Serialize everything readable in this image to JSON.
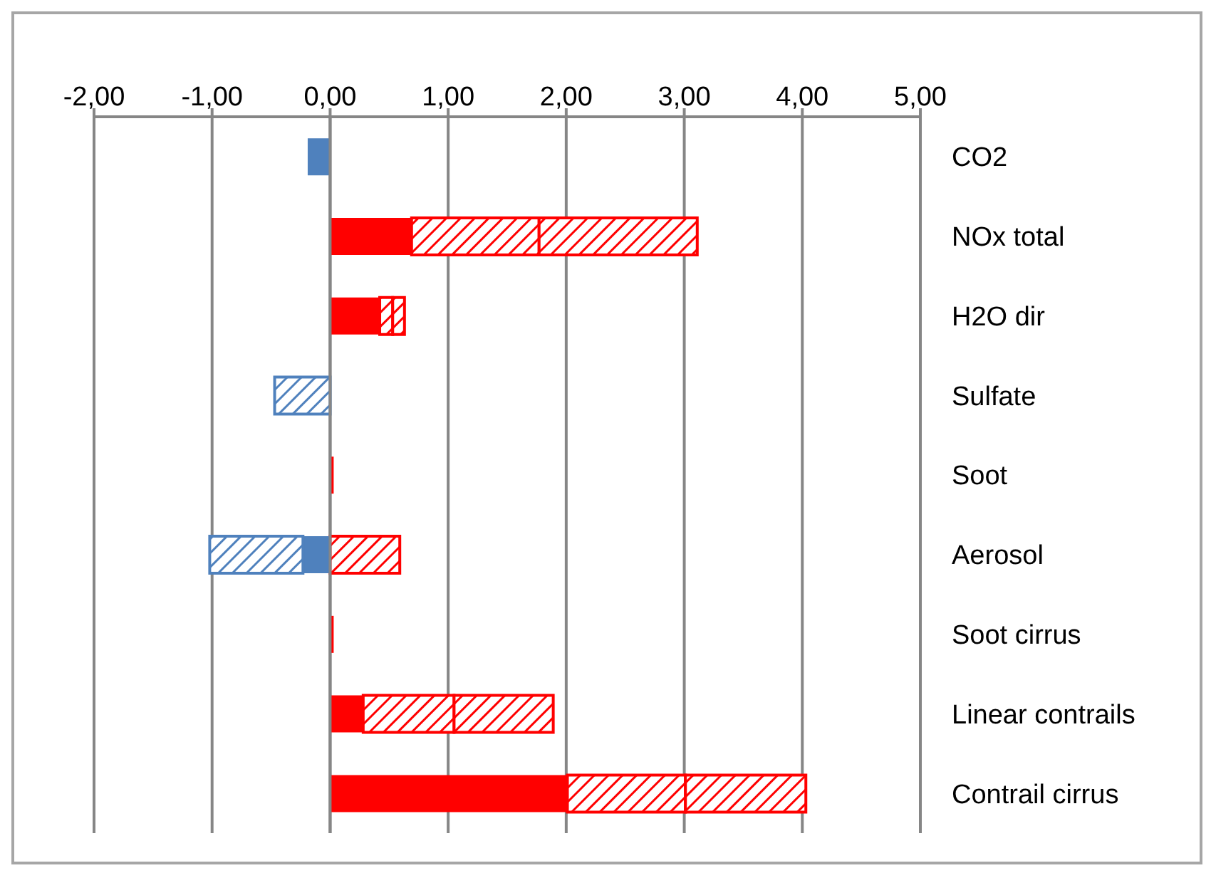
{
  "chart_data": {
    "type": "bar",
    "orientation": "horizontal",
    "stacked": true,
    "categories": [
      "CO2",
      "NOx total",
      "H2O dir",
      "Sulfate",
      "Soot",
      "Aerosol",
      "Soot cirrus",
      "Linear contrails",
      "Contrail cirrus"
    ],
    "series": [
      {
        "color": "#ff0000",
        "values": [
          null,
          0.69,
          0.42,
          null,
          0.03,
          null,
          0.03,
          0.28,
          2.01
        ]
      },
      {
        "color": "#ff0000",
        "values": [
          null,
          1.08,
          0.11,
          null,
          null,
          0.59,
          null,
          0.77,
          1.0
        ]
      },
      {
        "color": "#ff0000",
        "values": [
          null,
          1.34,
          0.1,
          null,
          null,
          null,
          null,
          0.84,
          1.02
        ]
      },
      {
        "color": "#4f81bd",
        "values": [
          -0.19,
          null,
          null,
          null,
          null,
          -0.23,
          null,
          null,
          null
        ]
      },
      {
        "color": "#4f81bd",
        "values": [
          null,
          null,
          null,
          -0.47,
          null,
          -0.79,
          null,
          null,
          null
        ]
      }
    ],
    "xlim": [
      -2,
      5
    ],
    "xticks": [
      {
        "value": -2,
        "label": "-2,00"
      },
      {
        "value": -1,
        "label": "-1,00"
      },
      {
        "value": 0,
        "label": "0,00"
      },
      {
        "value": 1,
        "label": "1,00"
      },
      {
        "value": 2,
        "label": "2,00"
      },
      {
        "value": 3,
        "label": "3,00"
      },
      {
        "value": 4,
        "label": "4,00"
      },
      {
        "value": 5,
        "label": "5,00"
      }
    ],
    "grid": "x",
    "legend": false
  }
}
